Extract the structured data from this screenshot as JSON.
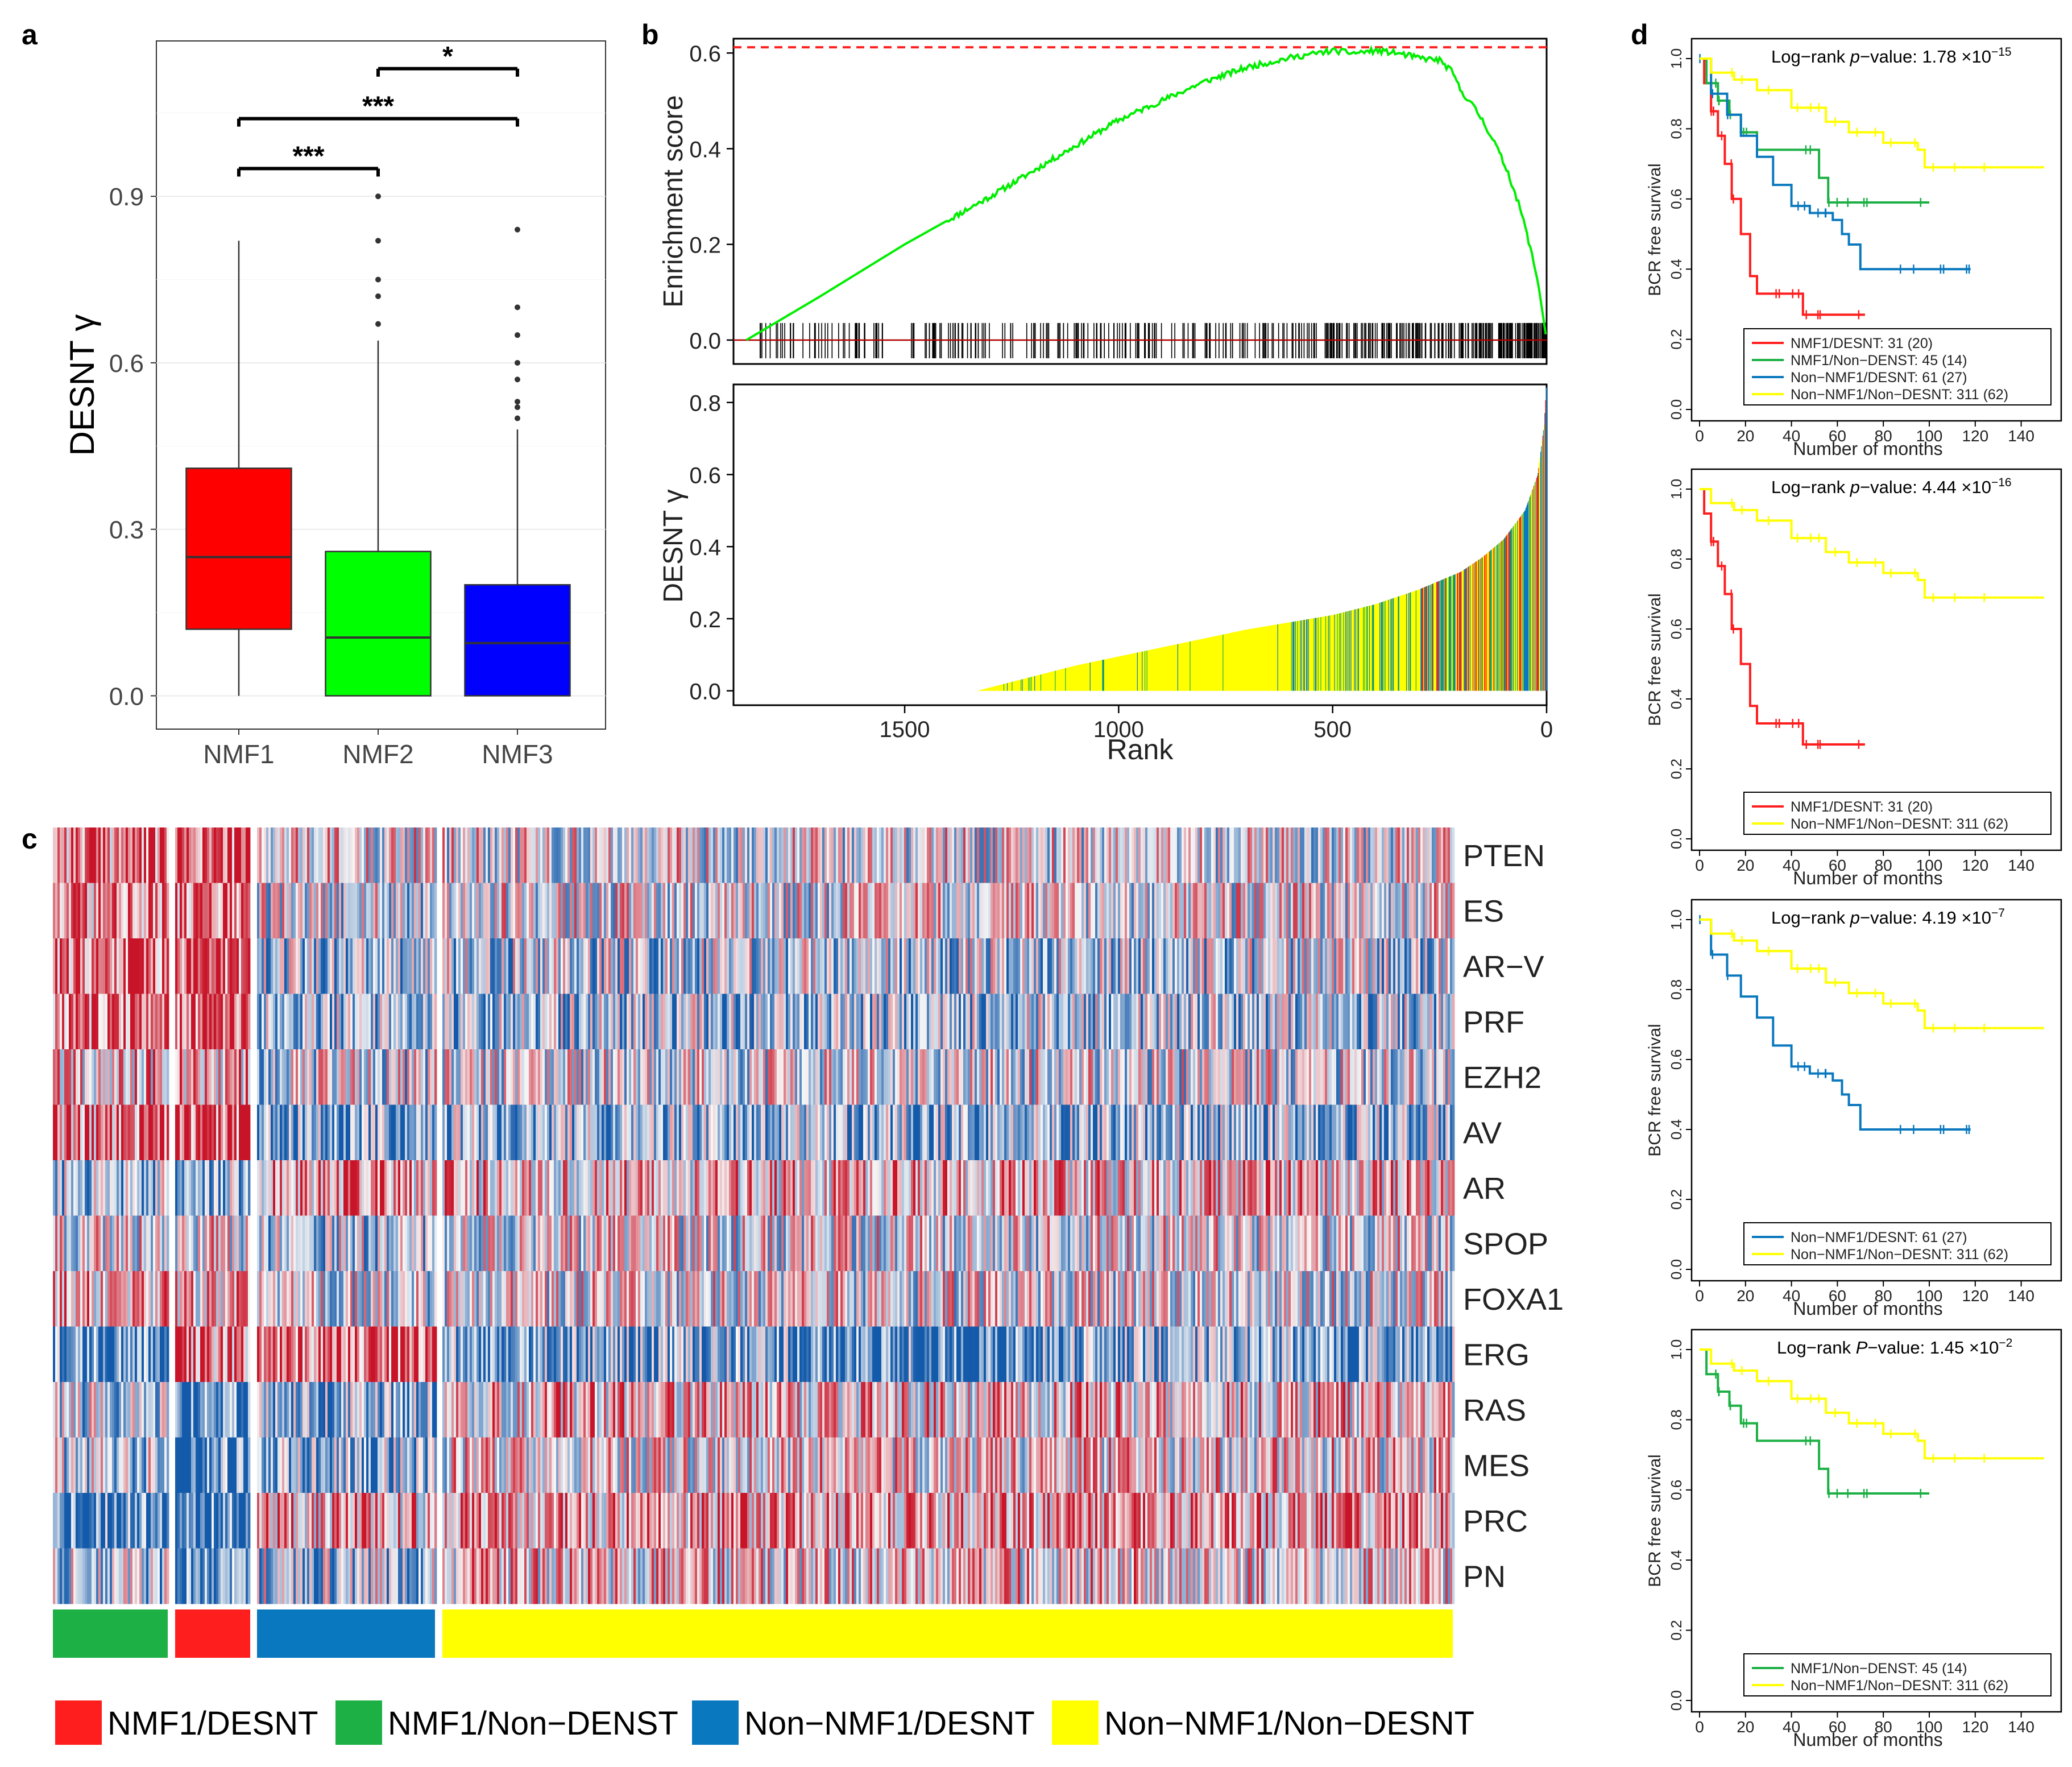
{
  "colors": {
    "nmf1_desnt": "#FF1E1E",
    "nmf1_non_desnt": "#1DB045",
    "non_nmf1_desnt": "#0A78BE",
    "non_nmf1_non_desnt": "#FFFF00",
    "box_nmf1": "#FF0000",
    "box_nmf2": "#00FF00",
    "box_nmf3": "#0000FF",
    "es_line": "#00EE00",
    "es_max_line": "#FF2020",
    "heat_red": "#C8102E",
    "heat_blue": "#1F4E9A"
  },
  "chart_data": [
    {
      "id": "a",
      "type": "box",
      "panel_label": "a",
      "ylabel": "DESNT γ",
      "ylim": [
        -0.06,
        1.18
      ],
      "yticks": [
        0.0,
        0.3,
        0.6,
        0.9
      ],
      "ytick_labels": [
        "0.0",
        "0.3",
        "0.6",
        "0.9"
      ],
      "categories": [
        "NMF1",
        "NMF2",
        "NMF3"
      ],
      "boxes": [
        {
          "name": "NMF1",
          "q1": 0.12,
          "median": 0.25,
          "q3": 0.41,
          "whisker_low": 0.0,
          "whisker_high": 0.82,
          "outliers": []
        },
        {
          "name": "NMF2",
          "q1": 0.0,
          "median": 0.105,
          "q3": 0.26,
          "whisker_low": 0.0,
          "whisker_high": 0.64,
          "outliers": [
            0.67,
            0.72,
            0.75,
            0.82,
            0.9
          ]
        },
        {
          "name": "NMF3",
          "q1": 0.0,
          "median": 0.095,
          "q3": 0.2,
          "whisker_low": 0.0,
          "whisker_high": 0.48,
          "outliers": [
            0.5,
            0.52,
            0.53,
            0.57,
            0.6,
            0.65,
            0.7,
            0.84
          ]
        }
      ],
      "significance": [
        {
          "from": "NMF1",
          "to": "NMF2",
          "y": 0.95,
          "label": "***"
        },
        {
          "from": "NMF1",
          "to": "NMF3",
          "y": 1.04,
          "label": "***"
        },
        {
          "from": "NMF2",
          "to": "NMF3",
          "y": 1.13,
          "label": "*"
        }
      ]
    },
    {
      "id": "b_top",
      "type": "line",
      "panel_label": "b",
      "ylabel": "Enrichment score",
      "xlim": [
        1900,
        0
      ],
      "ylim": [
        -0.05,
        0.63
      ],
      "yticks": [
        0.0,
        0.2,
        0.4,
        0.6
      ],
      "ytick_labels": [
        "0.0",
        "0.2",
        "0.4",
        "0.6"
      ],
      "max_es": 0.612,
      "series": [
        {
          "name": "Enrichment score",
          "x": [
            1870,
            1700,
            1500,
            1300,
            1150,
            1000,
            900,
            800,
            700,
            600,
            500,
            450,
            400,
            350,
            300,
            250,
            220,
            200,
            180,
            150,
            120,
            90,
            60,
            40,
            20,
            10,
            0
          ],
          "y": [
            0.0,
            0.09,
            0.2,
            0.3,
            0.38,
            0.46,
            0.5,
            0.54,
            0.57,
            0.59,
            0.605,
            0.6,
            0.605,
            0.6,
            0.59,
            0.585,
            0.56,
            0.52,
            0.5,
            0.46,
            0.41,
            0.35,
            0.27,
            0.2,
            0.12,
            0.06,
            0.0
          ]
        }
      ],
      "hit_rug": "gene-set members marked along rank axis, density increasing toward rank 0"
    },
    {
      "id": "b_bottom",
      "type": "bar",
      "ylabel": "DESNT γ",
      "xlabel": "Rank",
      "xlim": [
        1900,
        0
      ],
      "ylim": [
        -0.04,
        0.85
      ],
      "xticks": [
        1500,
        1000,
        500,
        0
      ],
      "xtick_labels": [
        "1500",
        "1000",
        "500",
        "0"
      ],
      "yticks": [
        0.0,
        0.2,
        0.4,
        0.6,
        0.8
      ],
      "ytick_labels": [
        "0.0",
        "0.2",
        "0.4",
        "0.6",
        "0.8"
      ],
      "profile": {
        "rank": [
          1330,
          1100,
          900,
          700,
          500,
          400,
          300,
          200,
          150,
          100,
          50,
          20,
          5,
          0
        ],
        "gamma": [
          0.0,
          0.07,
          0.12,
          0.17,
          0.21,
          0.24,
          0.28,
          0.33,
          0.37,
          0.42,
          0.5,
          0.6,
          0.74,
          0.85
        ]
      },
      "color_note": "bars coloured by group; yellow dominates low ranks, blue/red dominate high ranks"
    },
    {
      "id": "c",
      "type": "heatmap",
      "panel_label": "c",
      "rows": [
        "PTEN",
        "ES",
        "AR−V",
        "PRF",
        "EZH2",
        "AV",
        "AR",
        "SPOP",
        "FOXA1",
        "ERG",
        "RAS",
        "MES",
        "PRC",
        "PN"
      ],
      "groups": [
        {
          "name": "NMF1/Non−DENST",
          "n": 45,
          "color_key": "nmf1_non_desnt"
        },
        {
          "name": "NMF1/DESNT",
          "n": 31,
          "color_key": "nmf1_desnt"
        },
        {
          "name": "Non−NMF1/DESNT",
          "n": 61,
          "color_key": "non_nmf1_desnt"
        },
        {
          "name": "Non−NMF1/Non−DESNT",
          "n": 311,
          "color_key": "non_nmf1_non_desnt"
        }
      ]
    },
    {
      "id": "d1",
      "type": "line",
      "panel_label": "d",
      "ylabel": "BCR free survival",
      "xlabel": "Number of months",
      "xlim": [
        0,
        150
      ],
      "ylim": [
        0,
        1
      ],
      "xticks": [
        0,
        20,
        40,
        60,
        80,
        100,
        120,
        140
      ],
      "yticks": [
        0.0,
        0.2,
        0.4,
        0.6,
        0.8,
        1.0
      ],
      "pvalue_prefix": "Log−rank ",
      "pvalue_p": "p",
      "pvalue_mid": "−value: ",
      "pvalue_base": "1.78 ×10",
      "pvalue_exp": "−15",
      "series": [
        {
          "name": "NMF1/DESNT: 31 (20)",
          "color_key": "nmf1_desnt",
          "x": [
            0,
            2,
            5,
            8,
            11,
            14,
            18,
            22,
            25,
            45,
            72
          ],
          "y": [
            1.0,
            0.93,
            0.85,
            0.78,
            0.7,
            0.6,
            0.5,
            0.38,
            0.33,
            0.27,
            0.27
          ]
        },
        {
          "name": "NMF1/Non−DENST: 45 (14)",
          "color_key": "nmf1_non_desnt",
          "x": [
            0,
            3,
            8,
            13,
            18,
            25,
            47,
            52,
            56,
            70,
            100
          ],
          "y": [
            1.0,
            0.93,
            0.88,
            0.84,
            0.79,
            0.74,
            0.74,
            0.66,
            0.59,
            0.59,
            0.59
          ]
        },
        {
          "name": "Non−NMF1/DESNT: 61 (27)",
          "color_key": "non_nmf1_desnt",
          "x": [
            0,
            5,
            12,
            18,
            25,
            32,
            40,
            48,
            58,
            62,
            65,
            70,
            118
          ],
          "y": [
            1.0,
            0.9,
            0.84,
            0.78,
            0.72,
            0.64,
            0.58,
            0.56,
            0.54,
            0.5,
            0.47,
            0.4,
            0.4
          ]
        },
        {
          "name": "Non−NMF1/Non−DESNT: 311 (62)",
          "color_key": "non_nmf1_non_desnt",
          "x": [
            0,
            5,
            15,
            25,
            40,
            55,
            65,
            80,
            95,
            98,
            150
          ],
          "y": [
            1.0,
            0.96,
            0.94,
            0.91,
            0.86,
            0.82,
            0.79,
            0.76,
            0.74,
            0.69,
            0.69
          ]
        }
      ]
    },
    {
      "id": "d2",
      "type": "line",
      "ylabel": "BCR free survival",
      "xlabel": "Number of months",
      "xlim": [
        0,
        150
      ],
      "ylim": [
        0,
        1
      ],
      "xticks": [
        0,
        20,
        40,
        60,
        80,
        100,
        120,
        140
      ],
      "yticks": [
        0.0,
        0.2,
        0.4,
        0.6,
        0.8,
        1.0
      ],
      "pvalue_prefix": "Log−rank ",
      "pvalue_p": "p",
      "pvalue_mid": "−value: ",
      "pvalue_base": "4.44 ×10",
      "pvalue_exp": "−16",
      "series": [
        {
          "name": "NMF1/DESNT: 31 (20)",
          "color_key": "nmf1_desnt",
          "x": [
            0,
            2,
            5,
            8,
            11,
            14,
            18,
            22,
            25,
            45,
            72
          ],
          "y": [
            1.0,
            0.93,
            0.85,
            0.78,
            0.7,
            0.6,
            0.5,
            0.38,
            0.33,
            0.27,
            0.27
          ]
        },
        {
          "name": "Non−NMF1/Non−DESNT: 311 (62)",
          "color_key": "non_nmf1_non_desnt",
          "x": [
            0,
            5,
            15,
            25,
            40,
            55,
            65,
            80,
            95,
            98,
            150
          ],
          "y": [
            1.0,
            0.96,
            0.94,
            0.91,
            0.86,
            0.82,
            0.79,
            0.76,
            0.74,
            0.69,
            0.69
          ]
        }
      ]
    },
    {
      "id": "d3",
      "type": "line",
      "ylabel": "BCR free survival",
      "xlabel": "Number of months",
      "xlim": [
        0,
        150
      ],
      "ylim": [
        0,
        1
      ],
      "xticks": [
        0,
        20,
        40,
        60,
        80,
        100,
        120,
        140
      ],
      "yticks": [
        0.0,
        0.2,
        0.4,
        0.6,
        0.8,
        1.0
      ],
      "pvalue_prefix": "Log−rank ",
      "pvalue_p": "p",
      "pvalue_mid": "−value: ",
      "pvalue_base": "4.19 ×10",
      "pvalue_exp": "−7",
      "series": [
        {
          "name": "Non−NMF1/DESNT: 61 (27)",
          "color_key": "non_nmf1_desnt",
          "x": [
            0,
            5,
            12,
            18,
            25,
            32,
            40,
            48,
            58,
            62,
            65,
            70,
            118
          ],
          "y": [
            1.0,
            0.9,
            0.84,
            0.78,
            0.72,
            0.64,
            0.58,
            0.56,
            0.54,
            0.5,
            0.47,
            0.4,
            0.4
          ]
        },
        {
          "name": "Non−NMF1/Non−DESNT: 311 (62)",
          "color_key": "non_nmf1_non_desnt",
          "x": [
            0,
            5,
            15,
            25,
            40,
            55,
            65,
            80,
            95,
            98,
            150
          ],
          "y": [
            1.0,
            0.96,
            0.94,
            0.91,
            0.86,
            0.82,
            0.79,
            0.76,
            0.74,
            0.69,
            0.69
          ]
        }
      ]
    },
    {
      "id": "d4",
      "type": "line",
      "ylabel": "BCR free survival",
      "xlabel": "Number of months",
      "xlim": [
        0,
        150
      ],
      "ylim": [
        0,
        1
      ],
      "xticks": [
        0,
        20,
        40,
        60,
        80,
        100,
        120,
        140
      ],
      "yticks": [
        0.0,
        0.2,
        0.4,
        0.6,
        0.8,
        1.0
      ],
      "pvalue_prefix": "Log−rank ",
      "pvalue_p": "P",
      "pvalue_mid": "−value: ",
      "pvalue_base": "1.45 ×10",
      "pvalue_exp": "−2",
      "series": [
        {
          "name": "NMF1/Non−DENST: 45 (14)",
          "color_key": "nmf1_non_desnt",
          "x": [
            0,
            3,
            8,
            13,
            18,
            25,
            47,
            52,
            56,
            70,
            100
          ],
          "y": [
            1.0,
            0.93,
            0.88,
            0.84,
            0.79,
            0.74,
            0.74,
            0.66,
            0.59,
            0.59,
            0.59
          ]
        },
        {
          "name": "Non−NMF1/Non−DESNT: 311 (62)",
          "color_key": "non_nmf1_non_desnt",
          "x": [
            0,
            5,
            15,
            25,
            40,
            55,
            65,
            80,
            95,
            98,
            150
          ],
          "y": [
            1.0,
            0.96,
            0.94,
            0.91,
            0.86,
            0.82,
            0.79,
            0.76,
            0.74,
            0.69,
            0.69
          ]
        }
      ]
    }
  ],
  "legend": [
    {
      "label": "NMF1/DESNT",
      "color_key": "nmf1_desnt"
    },
    {
      "label": "NMF1/Non−DENST",
      "color_key": "nmf1_non_desnt"
    },
    {
      "label": "Non−NMF1/DESNT",
      "color_key": "non_nmf1_desnt"
    },
    {
      "label": "Non−NMF1/Non−DESNT",
      "color_key": "non_nmf1_non_desnt"
    }
  ]
}
